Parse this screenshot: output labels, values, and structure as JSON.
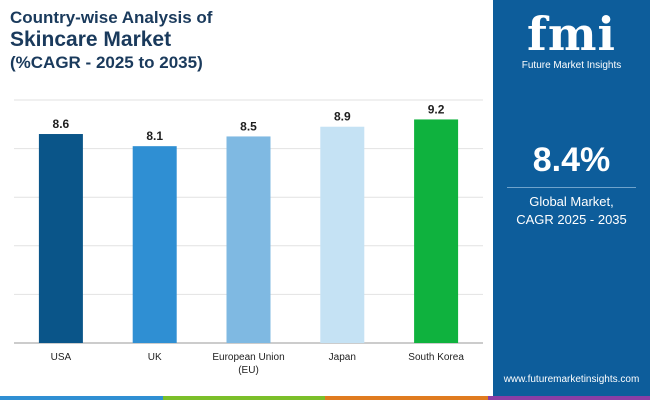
{
  "title": {
    "line1": "Country-wise Analysis of",
    "line2": "Skincare Market",
    "line3": "(%CAGR - 2025 to 2035)"
  },
  "chart_data": {
    "type": "bar",
    "categories": [
      "USA",
      "UK",
      "European Union\n(EU)",
      "Japan",
      "South Korea"
    ],
    "values": [
      8.6,
      8.1,
      8.5,
      8.9,
      9.2
    ],
    "bar_colors": [
      "#0a5589",
      "#2f8fd3",
      "#7fb9e2",
      "#c5e2f4",
      "#0fb23e"
    ],
    "ylim": [
      0,
      10
    ],
    "grid": true,
    "title": "",
    "xlabel": "",
    "ylabel": ""
  },
  "side_panel": {
    "logo_text": "fmi",
    "logo_subtitle": "Future Market Insights",
    "stat_value": "8.4%",
    "stat_label_line1": "Global Market,",
    "stat_label_line2": "CAGR 2025 - 2035",
    "website": "www.futuremarketinsights.com"
  },
  "colors": {
    "title": "#1a3a5c",
    "panel_bg": "#0d5d9b",
    "strip": [
      "#2f8fd3",
      "#7bbf2a",
      "#e07b1f",
      "#8a3ea5"
    ]
  }
}
